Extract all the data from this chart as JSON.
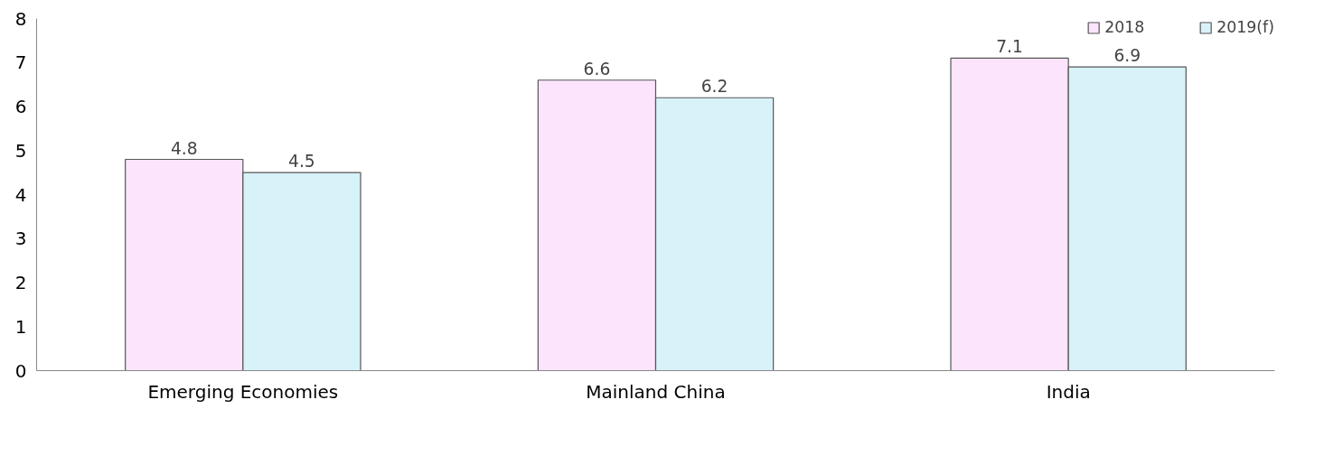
{
  "chart_data": {
    "type": "bar",
    "categories": [
      "Emerging Economies",
      "Mainland China",
      "India"
    ],
    "series": [
      {
        "name": "2018",
        "color": "#fce4fc",
        "values": [
          4.8,
          6.6,
          7.1
        ]
      },
      {
        "name": "2019(f)",
        "color": "#d8f2fa",
        "values": [
          4.5,
          6.2,
          6.9
        ]
      }
    ],
    "ylim": [
      0,
      8
    ],
    "yticks": [
      0,
      1,
      2,
      3,
      4,
      5,
      6,
      7,
      8
    ],
    "grid": false,
    "legend": "top right",
    "data_labels": true
  }
}
